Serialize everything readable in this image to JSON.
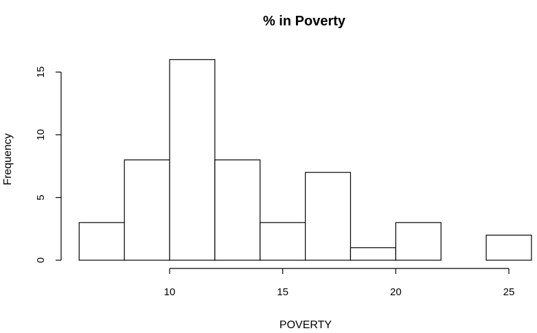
{
  "chart_data": {
    "type": "bar",
    "title": "% in Poverty",
    "xlabel": "POVERTY",
    "ylabel": "Frequency",
    "bins": [
      {
        "from": 6,
        "to": 8,
        "count": 3
      },
      {
        "from": 8,
        "to": 10,
        "count": 8
      },
      {
        "from": 10,
        "to": 12,
        "count": 16
      },
      {
        "from": 12,
        "to": 14,
        "count": 8
      },
      {
        "from": 14,
        "to": 16,
        "count": 3
      },
      {
        "from": 16,
        "to": 18,
        "count": 7
      },
      {
        "from": 18,
        "to": 20,
        "count": 1
      },
      {
        "from": 20,
        "to": 22,
        "count": 3
      },
      {
        "from": 22,
        "to": 24,
        "count": 0
      },
      {
        "from": 24,
        "to": 26,
        "count": 2
      }
    ],
    "xticks": [
      "10",
      "15",
      "20",
      "25"
    ],
    "yticks": [
      "0",
      "5",
      "10",
      "15"
    ],
    "xlim": [
      6,
      26
    ],
    "ylim": [
      0,
      16
    ],
    "grid": false,
    "bar_fill": "#ffffff",
    "bar_stroke": "#000000"
  }
}
